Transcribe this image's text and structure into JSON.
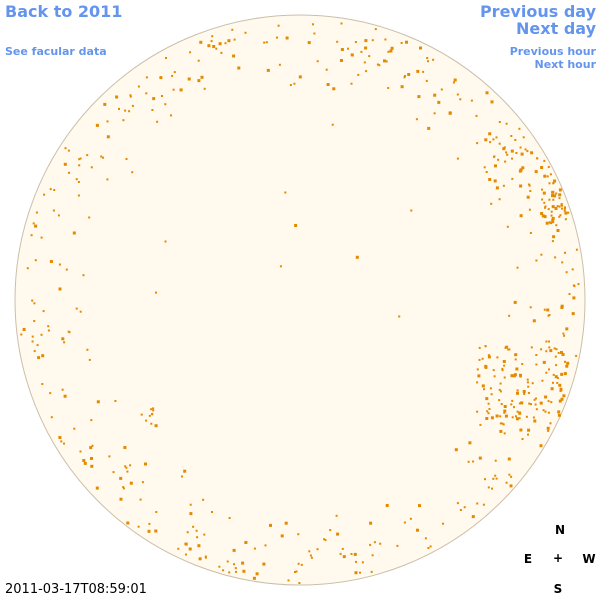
{
  "nav": {
    "back": "Back to 2011",
    "facular": "See facular data",
    "previous_day": "Previous day",
    "next_day": "Next day",
    "previous_hour": "Previous hour",
    "next_hour": "Next hour"
  },
  "timestamp": "2011-03-17T08:59:01",
  "compass": {
    "north": "N",
    "east": "E",
    "center": "+",
    "west": "W",
    "south": "S"
  }
}
